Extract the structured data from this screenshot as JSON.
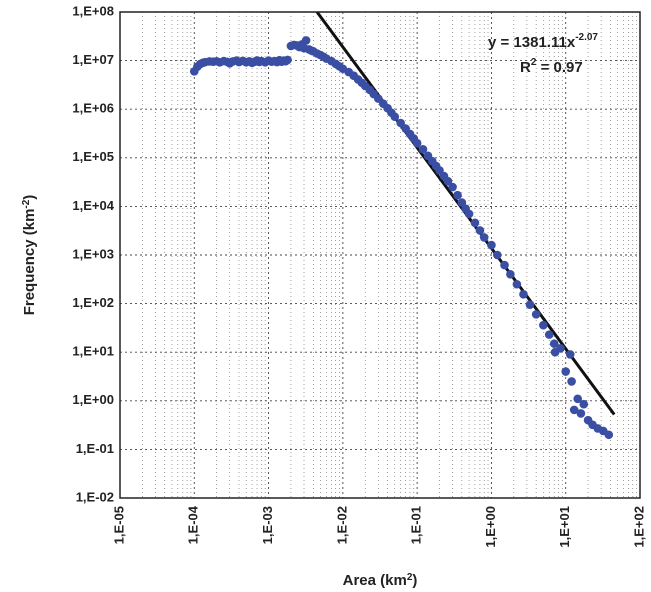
{
  "chart_data": {
    "type": "scatter",
    "x_scale": "log",
    "y_scale": "log",
    "xlim": [
      1e-05,
      100
    ],
    "ylim": [
      0.01,
      100000000
    ],
    "xlabel": "Area (km",
    "xlabel_sup": "2",
    "xlabel_end": ")",
    "ylabel": "Frequency (km",
    "ylabel_sup": "-2",
    "ylabel_end": ")",
    "x_tick_labels": [
      "1,E-05",
      "1,E-04",
      "1,E-03",
      "1,E-02",
      "1,E-01",
      "1,E+00",
      "1,E+01",
      "1,E+02"
    ],
    "y_tick_labels": [
      "1,E-02",
      "1,E-01",
      "1,E+00",
      "1,E+01",
      "1,E+02",
      "1,E+03",
      "1,E+04",
      "1,E+05",
      "1,E+06",
      "1,E+07",
      "1,E+08"
    ],
    "grid": true,
    "point_color": "#3a4ea3",
    "line_color": "#111111",
    "fit": {
      "coefficient": 1381.11,
      "exponent": -2.07,
      "x_range": [
        0.0023,
        45
      ]
    },
    "annotation": {
      "equation": "y = 1381.11x",
      "equation_sup": "-2.07",
      "r2_prefix": "R",
      "r2_sup": "2",
      "r2_suffix": " = 0.97"
    },
    "points": [
      [
        0.0001,
        6000000
      ],
      [
        0.00011,
        7500000
      ],
      [
        0.00012,
        8500000
      ],
      [
        0.00013,
        9000000
      ],
      [
        0.00014,
        9300000
      ],
      [
        0.00016,
        9600000
      ],
      [
        0.00018,
        9500000
      ],
      [
        0.0002,
        9700000
      ],
      [
        0.00022,
        9200000
      ],
      [
        0.00025,
        9800000
      ],
      [
        0.00028,
        9400000
      ],
      [
        0.0003,
        8800000
      ],
      [
        0.00033,
        9600000
      ],
      [
        0.00037,
        10000000
      ],
      [
        0.0004,
        9300000
      ],
      [
        0.00045,
        9900000
      ],
      [
        0.0005,
        9200000
      ],
      [
        0.00055,
        9700000
      ],
      [
        0.0006,
        9000000
      ],
      [
        0.00065,
        9500000
      ],
      [
        0.0007,
        10100000
      ],
      [
        0.00075,
        9400000
      ],
      [
        0.0008,
        9800000
      ],
      [
        0.0009,
        9200000
      ],
      [
        0.001,
        10000000
      ],
      [
        0.0011,
        9500000
      ],
      [
        0.0012,
        9800000
      ],
      [
        0.0013,
        9300000
      ],
      [
        0.0014,
        10200000
      ],
      [
        0.0015,
        9500000
      ],
      [
        0.0016,
        10000000
      ],
      [
        0.0017,
        9700000
      ],
      [
        0.0018,
        10300000
      ],
      [
        0.002,
        20000000
      ],
      [
        0.0022,
        21000000
      ],
      [
        0.0024,
        20500000
      ],
      [
        0.0026,
        19000000
      ],
      [
        0.0028,
        21500000
      ],
      [
        0.003,
        18000000
      ],
      [
        0.0032,
        26000000
      ],
      [
        0.0035,
        17000000
      ],
      [
        0.0038,
        16000000
      ],
      [
        0.004,
        15500000
      ],
      [
        0.0045,
        14000000
      ],
      [
        0.005,
        13000000
      ],
      [
        0.0055,
        12000000
      ],
      [
        0.006,
        11000000
      ],
      [
        0.007,
        9800000
      ],
      [
        0.008,
        8600000
      ],
      [
        0.009,
        7600000
      ],
      [
        0.01,
        6800000
      ],
      [
        0.012,
        5800000
      ],
      [
        0.014,
        4900000
      ],
      [
        0.016,
        4100000
      ],
      [
        0.018,
        3500000
      ],
      [
        0.02,
        3000000
      ],
      [
        0.023,
        2500000
      ],
      [
        0.026,
        2050000
      ],
      [
        0.03,
        1650000
      ],
      [
        0.035,
        1300000
      ],
      [
        0.04,
        1050000
      ],
      [
        0.045,
        850000
      ],
      [
        0.05,
        700000
      ],
      [
        0.06,
        520000
      ],
      [
        0.07,
        400000
      ],
      [
        0.08,
        310000
      ],
      [
        0.09,
        250000
      ],
      [
        0.1,
        200000
      ],
      [
        0.12,
        150000
      ],
      [
        0.14,
        110000
      ],
      [
        0.16,
        85000
      ],
      [
        0.18,
        68000
      ],
      [
        0.2,
        55000
      ],
      [
        0.23,
        42000
      ],
      [
        0.26,
        33000
      ],
      [
        0.3,
        25000
      ],
      [
        0.35,
        17000
      ],
      [
        0.4,
        12000
      ],
      [
        0.45,
        9000
      ],
      [
        0.5,
        7000
      ],
      [
        0.6,
        4600
      ],
      [
        0.7,
        3200
      ],
      [
        0.8,
        2300
      ],
      [
        1.0,
        1600
      ],
      [
        1.2,
        1000
      ],
      [
        1.5,
        620
      ],
      [
        1.8,
        400
      ],
      [
        2.2,
        250
      ],
      [
        2.7,
        155
      ],
      [
        3.3,
        95
      ],
      [
        4.0,
        60
      ],
      [
        5.0,
        36
      ],
      [
        6.0,
        23
      ],
      [
        7.0,
        15
      ],
      [
        7.2,
        10
      ],
      [
        8.5,
        12
      ],
      [
        10.0,
        4
      ],
      [
        11.5,
        9
      ],
      [
        12.0,
        2.5
      ],
      [
        13.0,
        0.65
      ],
      [
        14.5,
        1.1
      ],
      [
        16.0,
        0.55
      ],
      [
        17.5,
        0.85
      ],
      [
        20.0,
        0.4
      ],
      [
        23.0,
        0.32
      ],
      [
        27.0,
        0.27
      ],
      [
        32.0,
        0.24
      ],
      [
        38.0,
        0.2
      ]
    ]
  }
}
